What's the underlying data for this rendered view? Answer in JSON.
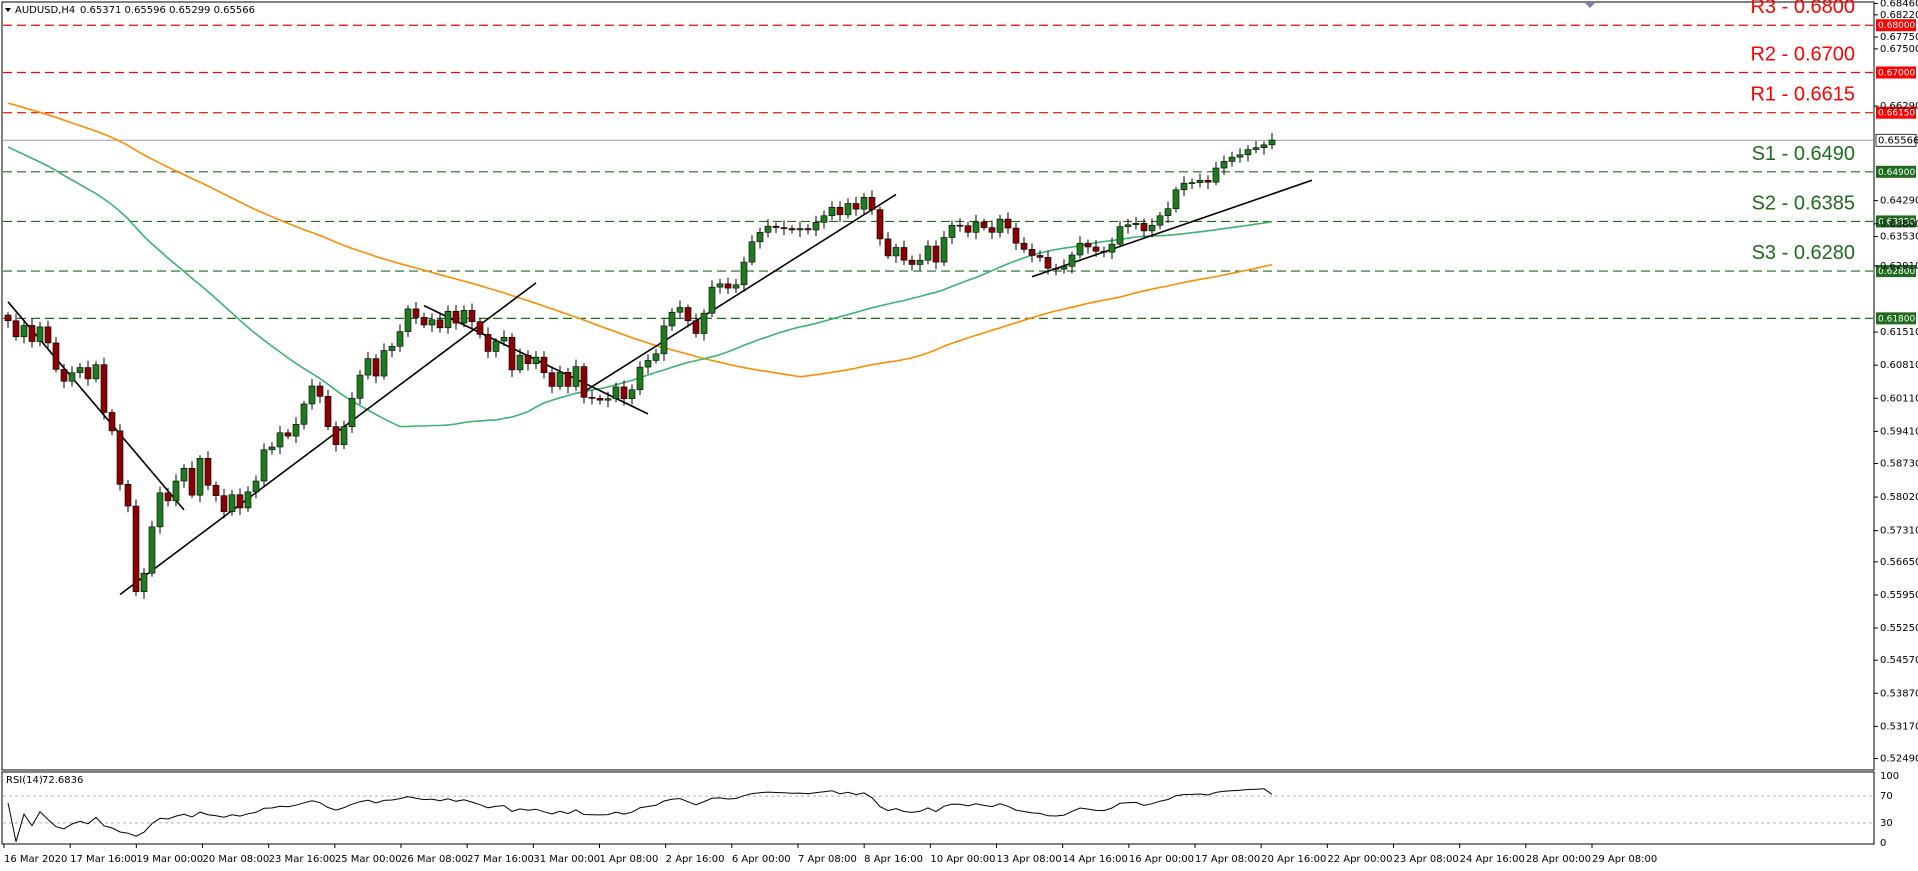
{
  "header": {
    "symbol_label": "AUDUSD,H4",
    "ohlc_label": "0.65371 0.65596 0.65299 0.65566"
  },
  "rsi_header": {
    "label": "RSI(14)",
    "value": "72.6836"
  },
  "chart_data": {
    "type": "candlestick",
    "symbol": "AUDUSD",
    "timeframe": "H4",
    "ylim": [
      0.5229,
      0.6847
    ],
    "price_ticks": [
      "0.68460",
      "0.68220",
      "0.67750",
      "0.67500",
      "0.67000",
      "0.66290",
      "0.66150",
      "0.65566",
      "0.64900",
      "0.64290",
      "0.63850",
      "0.63800",
      "0.63530",
      "0.62800",
      "0.62910",
      "0.61800",
      "0.61510",
      "0.60810",
      "0.60110",
      "0.59410",
      "0.58730",
      "0.58020",
      "0.57310",
      "0.56650",
      "0.55950",
      "0.55250",
      "0.54570",
      "0.53870",
      "0.53170",
      "0.52490"
    ],
    "x_labels": [
      "16 Mar 2020",
      "17 Mar 16:00",
      "19 Mar 00:00",
      "20 Mar 08:00",
      "23 Mar 16:00",
      "25 Mar 00:00",
      "26 Mar 08:00",
      "27 Mar 16:00",
      "31 Mar 00:00",
      "1 Apr 08:00",
      "2 Apr 16:00",
      "6 Apr 00:00",
      "7 Apr 08:00",
      "8 Apr 16:00",
      "10 Apr 00:00",
      "13 Apr 08:00",
      "14 Apr 16:00",
      "16 Apr 00:00",
      "17 Apr 08:00",
      "20 Apr 16:00",
      "22 Apr 00:00",
      "23 Apr 08:00",
      "24 Apr 16:00",
      "28 Apr 00:00",
      "29 Apr 08:00"
    ],
    "current_price": "0.65566",
    "levels": [
      {
        "name": "R3",
        "label": "R3 - 0.6800",
        "value": 0.68,
        "badge": "0.68000",
        "color": "#ff0000"
      },
      {
        "name": "R2",
        "label": "R2 - 0.6700",
        "value": 0.67,
        "badge": "0.67000",
        "color": "#ff0000"
      },
      {
        "name": "R1",
        "label": "R1 - 0.6615",
        "value": 0.6615,
        "badge": "0.66150",
        "color": "#ff0000"
      },
      {
        "name": "S1",
        "label": "S1 - 0.6490",
        "value": 0.649,
        "badge": "0.64900",
        "color": "#1e6b1e"
      },
      {
        "name": "S2",
        "label": "S2 - 0.6385",
        "value": 0.6385,
        "badge": "0.63850",
        "color": "#1e6b1e"
      },
      {
        "name": "S3",
        "label": "S3 - 0.6280",
        "value": 0.628,
        "badge": "0.62800",
        "color": "#1e6b1e"
      },
      {
        "name": "S4",
        "label": "",
        "value": 0.618,
        "badge": "0.61800",
        "color": "#1e6b1e"
      }
    ],
    "candle_colors": {
      "up": "#1e7b1e",
      "down": "#8b0000"
    },
    "trendline_color": "#000000",
    "ma_colors": {
      "slow": "#ff8c00",
      "fast": "#3cb371"
    },
    "closes": [
      0.6175,
      0.6141,
      0.6165,
      0.6131,
      0.6162,
      0.6128,
      0.6072,
      0.6047,
      0.6065,
      0.6076,
      0.6052,
      0.6082,
      0.5981,
      0.5942,
      0.5829,
      0.5783,
      0.5602,
      0.5641,
      0.5739,
      0.5811,
      0.5794,
      0.5836,
      0.5863,
      0.5806,
      0.5884,
      0.5827,
      0.5805,
      0.5771,
      0.5807,
      0.5779,
      0.5813,
      0.5836,
      0.5902,
      0.5908,
      0.5938,
      0.5931,
      0.5956,
      0.5999,
      0.6037,
      0.6015,
      0.5951,
      0.5913,
      0.5951,
      0.6011,
      0.606,
      0.6095,
      0.6058,
      0.6112,
      0.6121,
      0.6152,
      0.62,
      0.6182,
      0.6166,
      0.6177,
      0.616,
      0.6195,
      0.617,
      0.6197,
      0.6173,
      0.6146,
      0.611,
      0.6132,
      0.614,
      0.6071,
      0.6102,
      0.6084,
      0.6098,
      0.6065,
      0.6036,
      0.6066,
      0.6036,
      0.6078,
      0.6013,
      0.6011,
      0.6007,
      0.601,
      0.6035,
      0.601,
      0.6029,
      0.6077,
      0.6091,
      0.6105,
      0.6164,
      0.6193,
      0.6203,
      0.6175,
      0.6148,
      0.6191,
      0.6246,
      0.6253,
      0.6244,
      0.6251,
      0.6299,
      0.6342,
      0.6362,
      0.6375,
      0.6372,
      0.637,
      0.6367,
      0.637,
      0.6367,
      0.6383,
      0.6397,
      0.6415,
      0.6399,
      0.6423,
      0.6411,
      0.6436,
      0.641,
      0.6348,
      0.6312,
      0.633,
      0.6303,
      0.6294,
      0.6303,
      0.6333,
      0.6299,
      0.6351,
      0.6377,
      0.6376,
      0.6362,
      0.6384,
      0.6372,
      0.6362,
      0.639,
      0.6371,
      0.6339,
      0.6326,
      0.6313,
      0.6309,
      0.6286,
      0.6284,
      0.629,
      0.6314,
      0.6339,
      0.6331,
      0.6322,
      0.632,
      0.6337,
      0.6374,
      0.6378,
      0.6381,
      0.6365,
      0.6377,
      0.6397,
      0.6412,
      0.6452,
      0.6466,
      0.6467,
      0.6472,
      0.6468,
      0.6498,
      0.6512,
      0.6521,
      0.6526,
      0.6537,
      0.6541,
      0.6547,
      0.6557
    ]
  }
}
